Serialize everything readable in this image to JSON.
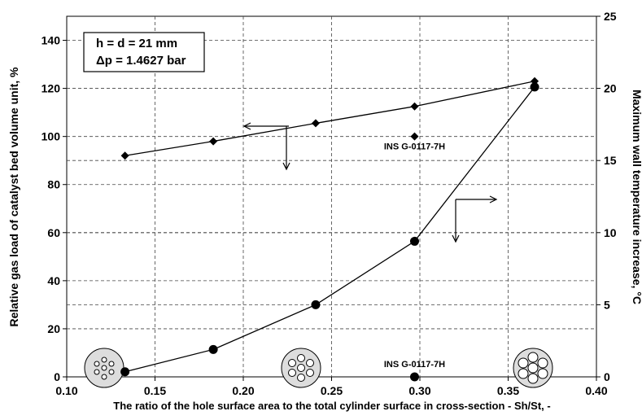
{
  "chart_data": {
    "type": "line",
    "x_label": "The ratio of the hole surface area to the total cylinder surface in cross-section - Sh/St, -",
    "y_label": "Relative gas load of catalyst bed volume unit, %",
    "y2_label": "Maximum wall temperature increase, °C",
    "annotations": [
      "h = d = 21 mm",
      "Δp = 1.4627 bar"
    ],
    "xlim": [
      0.1,
      0.4
    ],
    "xticks": [
      {
        "value": 0.1,
        "label": "0.10"
      },
      {
        "value": 0.15,
        "label": "0.15"
      },
      {
        "value": 0.2,
        "label": "0.20"
      },
      {
        "value": 0.25,
        "label": "0.25"
      },
      {
        "value": 0.3,
        "label": "0.30"
      },
      {
        "value": 0.35,
        "label": "0.35"
      },
      {
        "value": 0.4,
        "label": "0.40"
      }
    ],
    "ylim": [
      0,
      150
    ],
    "yticks": [
      0,
      20,
      40,
      60,
      80,
      100,
      120,
      140
    ],
    "y2lim": [
      0,
      25
    ],
    "y2ticks": [
      0,
      5,
      10,
      15,
      20,
      25
    ],
    "grid": true,
    "series": [
      {
        "color": "#000000",
        "marker": "diamond",
        "x": [
          0.133,
          0.183,
          0.241,
          0.297,
          0.365
        ],
        "values": [
          92,
          98,
          105.5,
          112.5,
          123
        ]
      },
      {
        "color": "#000000",
        "marker": "circle",
        "axis": "y2",
        "x": [
          0.133,
          0.183,
          0.241,
          0.297,
          0.365
        ],
        "values": [
          0.35,
          1.9,
          5.0,
          9.4,
          20.1
        ]
      }
    ],
    "reference_points": [
      {
        "label": "INS G-0117-7H",
        "marker": "diamond",
        "x": 0.297,
        "value": 100
      },
      {
        "label": "INS G-0117-7H",
        "marker": "circle",
        "axis": "y2",
        "x": 0.297,
        "value": 0
      }
    ]
  }
}
